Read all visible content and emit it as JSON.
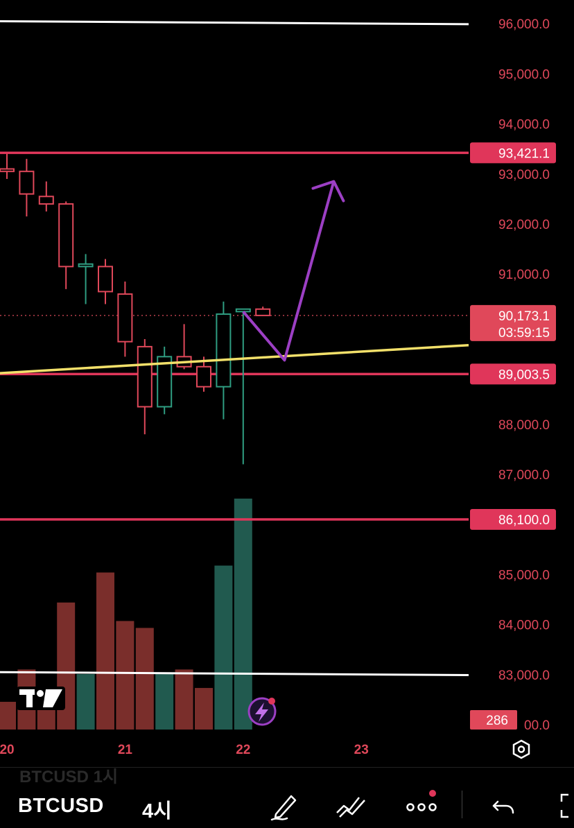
{
  "chart_data": {
    "type": "candlestick",
    "y_ticks": [
      "96,000.0",
      "95,000.0",
      "94,000.0",
      "93,000.0",
      "92,000.0",
      "91,000.0",
      "88,000.0",
      "87,000.0",
      "85,000.0",
      "84,000.0",
      "83,000.0",
      "00.0"
    ],
    "x_ticks": [
      {
        "label": "20",
        "pos": 0.0
      },
      {
        "label": "21",
        "pos": 6.0
      },
      {
        "label": "22",
        "pos": 12.0
      },
      {
        "label": "23",
        "pos": 18.0
      }
    ],
    "candles": [
      {
        "o": 93100,
        "h": 93400,
        "l": 92900,
        "c": 93050
      },
      {
        "o": 93050,
        "h": 93300,
        "l": 92150,
        "c": 92600
      },
      {
        "o": 92550,
        "h": 92850,
        "l": 92250,
        "c": 92400
      },
      {
        "o": 92400,
        "h": 92450,
        "l": 90700,
        "c": 91150
      },
      {
        "o": 91150,
        "h": 91400,
        "l": 90400,
        "c": 91200
      },
      {
        "o": 91150,
        "h": 91300,
        "l": 90400,
        "c": 90650
      },
      {
        "o": 90600,
        "h": 90850,
        "l": 89350,
        "c": 89650
      },
      {
        "o": 89550,
        "h": 89700,
        "l": 87800,
        "c": 88350
      },
      {
        "o": 88350,
        "h": 89550,
        "l": 88200,
        "c": 89350
      },
      {
        "o": 89350,
        "h": 90000,
        "l": 89100,
        "c": 89150
      },
      {
        "o": 89150,
        "h": 89350,
        "l": 88650,
        "c": 88750
      },
      {
        "o": 88750,
        "h": 90450,
        "l": 88100,
        "c": 90200
      },
      {
        "o": 90250,
        "h": 90300,
        "l": 87200,
        "c": 90300
      },
      {
        "o": 90300,
        "h": 90350,
        "l": 90200,
        "c": 90173.1
      }
    ],
    "volumes": [
      12,
      26,
      13,
      55,
      24,
      68,
      47,
      44,
      24,
      26,
      18,
      71,
      100,
      0
    ],
    "volume_badge": "286",
    "horizontal_levels": [
      {
        "price": 93421.1,
        "label": "93,421.1",
        "color": "#e0365a"
      },
      {
        "price": 89003.5,
        "label": "89,003.5",
        "color": "#e0365a"
      },
      {
        "price": 86100.0,
        "label": "86,100.0",
        "color": "#e0365a"
      }
    ],
    "white_lines": [
      {
        "from": 96050,
        "to": 95990
      },
      {
        "from": 83050,
        "to": 82990
      }
    ],
    "trendline": {
      "color": "#f2e06a",
      "from_price": 89020,
      "to_price": 89580
    },
    "current_price": {
      "label": "90,173.1",
      "countdown": "03:59:15",
      "color": "#e0485a"
    },
    "projection": {
      "color": "#9c3fc4",
      "points": [
        {
          "i": 12,
          "p": 90250
        },
        {
          "i": 14.1,
          "p": 89280
        },
        {
          "i": 16.6,
          "p": 92850
        }
      ]
    },
    "colors": {
      "up": "#2f9e82",
      "down": "#e0485a",
      "up_volume": "#215a4f",
      "down_volume": "#7a2e2b"
    }
  },
  "toolbar": {
    "ghost_label": "BTCUSD   1시",
    "symbol": "BTCUSD",
    "interval": "4시",
    "icons": [
      "pencil-icon",
      "trend-tools-icon",
      "more-icon",
      "undo-icon"
    ]
  }
}
